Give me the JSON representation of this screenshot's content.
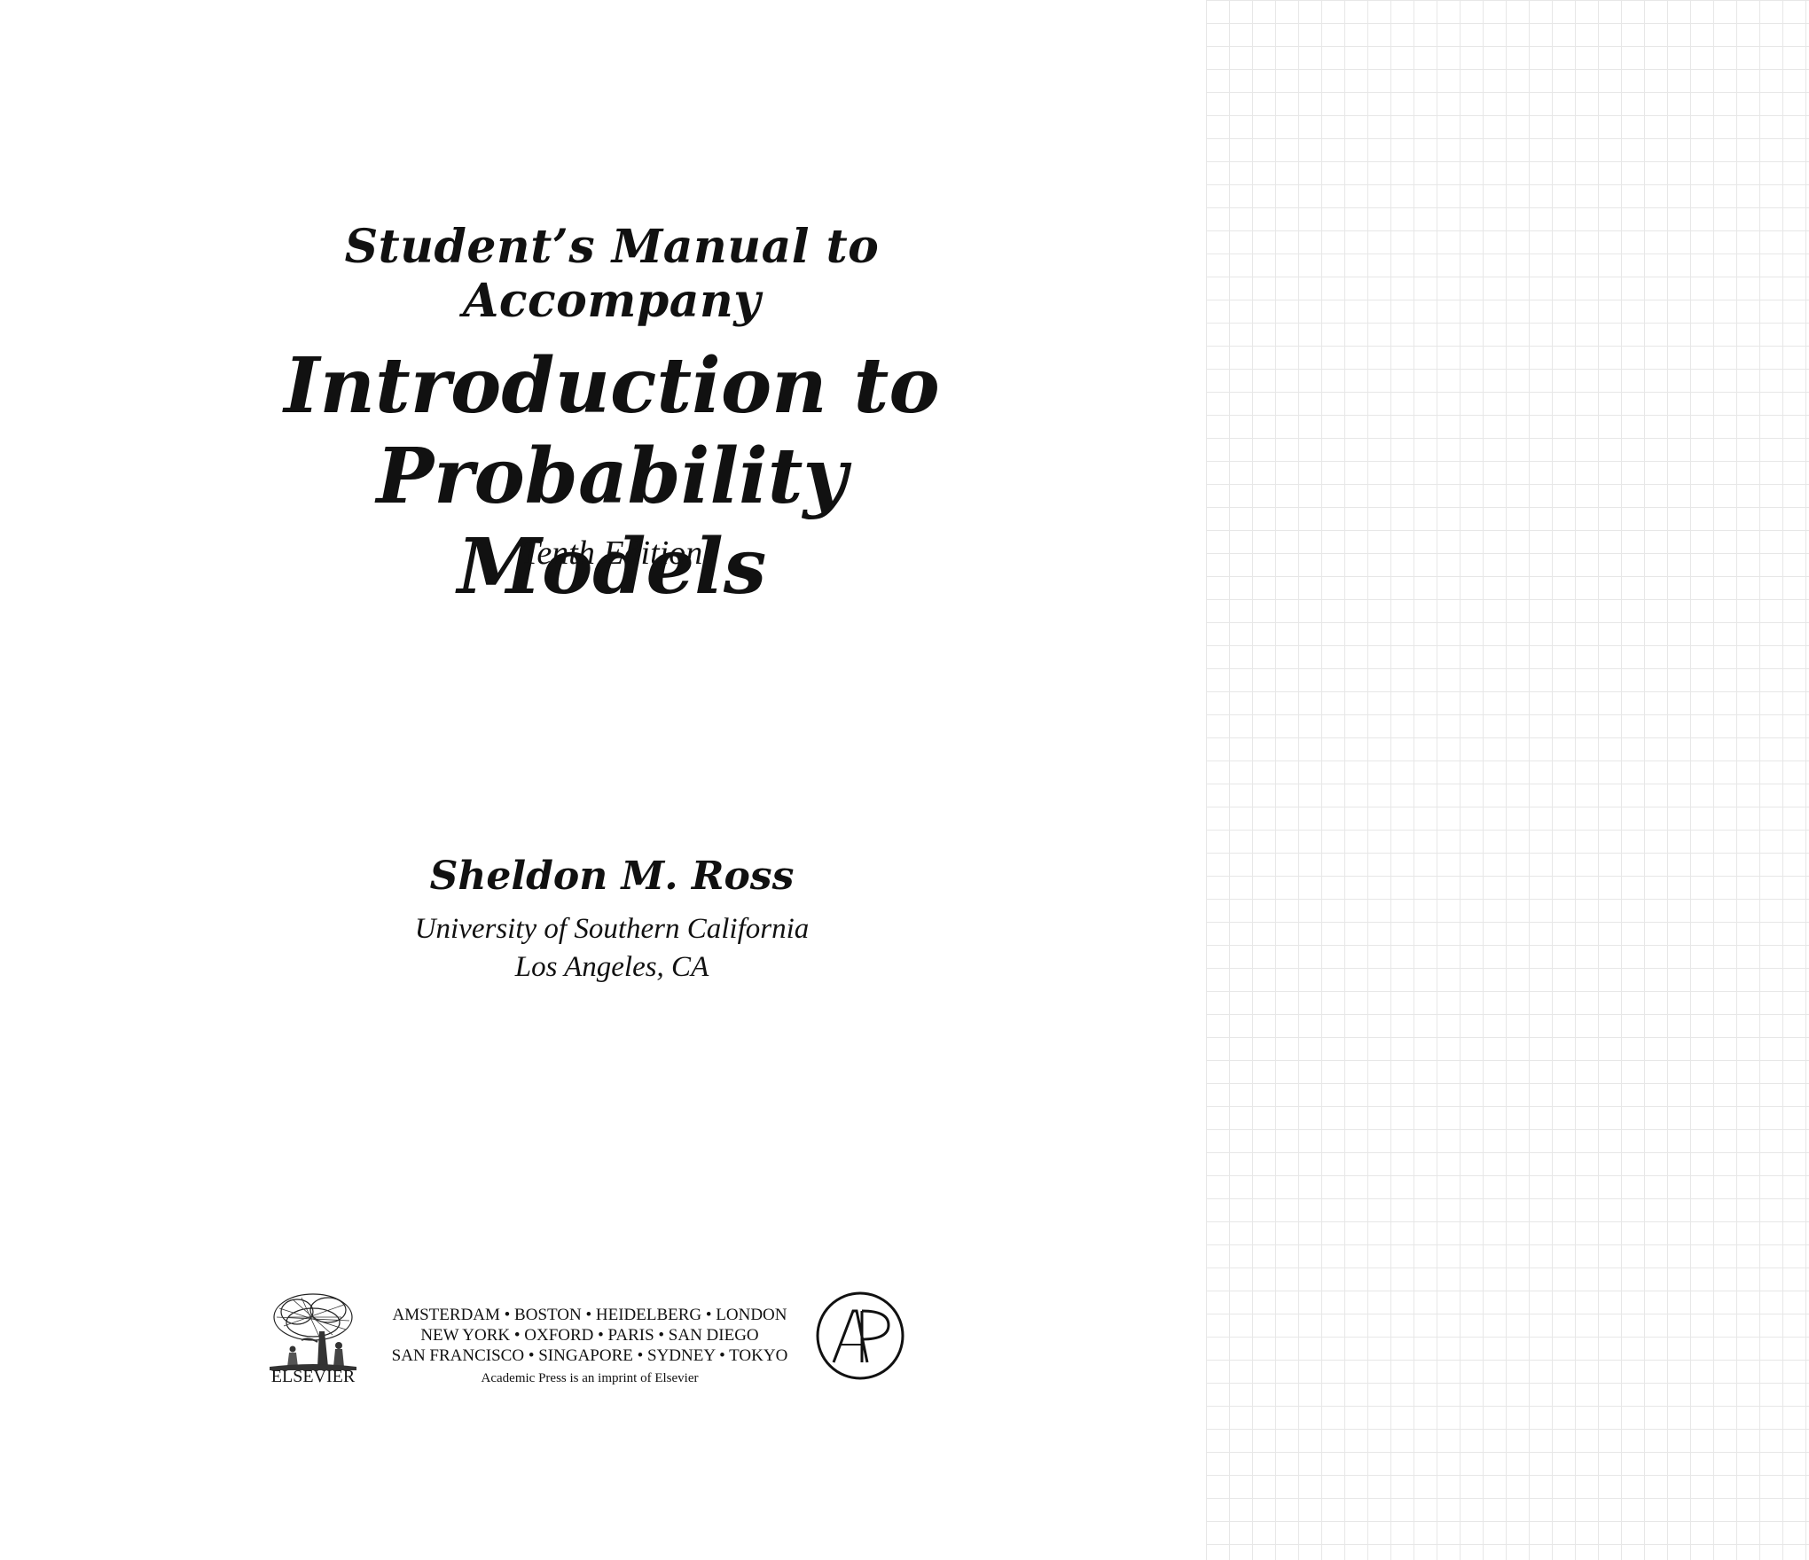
{
  "front_matter": {
    "subtitle": "Student’s Manual to Accompany",
    "title_line_1": "Introduction to",
    "title_line_2": "Probability Models",
    "edition": "Tenth Edition",
    "author": "Sheldon M. Ross",
    "affiliation_line_1": "University of Southern California",
    "affiliation_line_2": "Los Angeles, CA"
  },
  "publisher": {
    "elsevier_name": "ELSEVIER",
    "cities_line_1": "AMSTERDAM • BOSTON • HEIDELBERG • LONDON",
    "cities_line_2": "NEW YORK • OXFORD • PARIS • SAN DIEGO",
    "cities_line_3": "SAN FRANCISCO • SINGAPORE • SYDNEY • TOKYO",
    "imprint_note": "Academic Press is an imprint of Elsevier",
    "elsevier_logo_icon": "elsevier-tree-icon",
    "academic_press_logo_icon": "academic-press-ap-icon"
  },
  "colors": {
    "ink": "#111111",
    "grid_line": "#e7e7e7",
    "background": "#ffffff"
  }
}
